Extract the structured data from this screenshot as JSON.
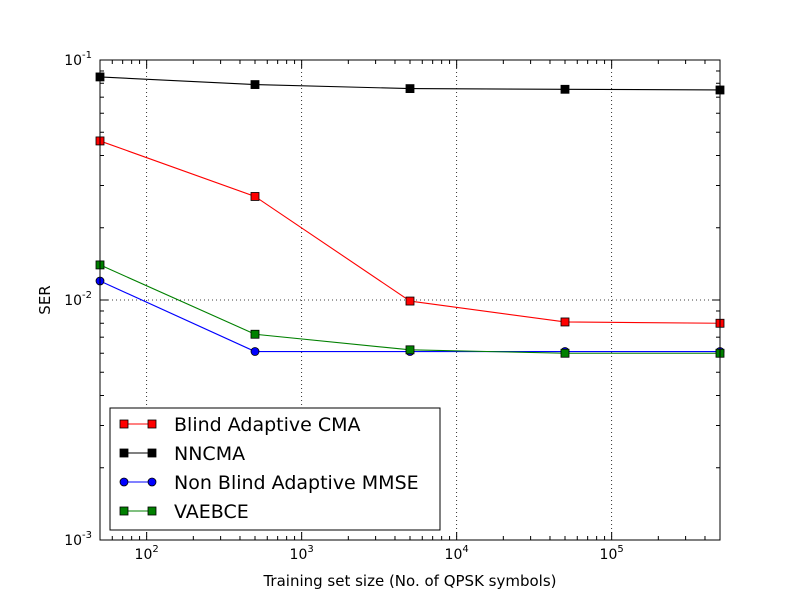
{
  "chart_data": {
    "type": "line",
    "xscale": "log",
    "yscale": "log",
    "xlabel": "Training set size (No. of QPSK symbols)",
    "ylabel": "SER",
    "xlim": [
      50,
      500000
    ],
    "ylim": [
      0.001,
      0.1
    ],
    "grid": true,
    "legend_position": "bottom-left",
    "x_ticks": [
      {
        "value": 100,
        "base": "10",
        "exp": "2"
      },
      {
        "value": 1000,
        "base": "10",
        "exp": "3"
      },
      {
        "value": 10000,
        "base": "10",
        "exp": "4"
      },
      {
        "value": 100000,
        "base": "10",
        "exp": "5"
      }
    ],
    "y_ticks": [
      {
        "value": 0.1,
        "base": "10",
        "exp": "-1"
      },
      {
        "value": 0.01,
        "base": "10",
        "exp": "-2"
      },
      {
        "value": 0.001,
        "base": "10",
        "exp": "-3"
      }
    ],
    "x": [
      50,
      500,
      5000,
      50000,
      500000
    ],
    "series": [
      {
        "name": "Blind Adaptive CMA",
        "color": "#ff0000",
        "marker": "square",
        "values": [
          0.046,
          0.027,
          0.0099,
          0.0081,
          0.008
        ]
      },
      {
        "name": "NNCMA",
        "color": "#000000",
        "marker": "square",
        "values": [
          0.085,
          0.079,
          0.076,
          0.0755,
          0.075
        ]
      },
      {
        "name": "Non Blind Adaptive MMSE",
        "color": "#0000ff",
        "marker": "circle",
        "values": [
          0.012,
          0.0061,
          0.0061,
          0.0061,
          0.0061
        ]
      },
      {
        "name": "VAEBCE",
        "color": "#008000",
        "marker": "square",
        "values": [
          0.014,
          0.0072,
          0.0062,
          0.006,
          0.006
        ]
      }
    ]
  }
}
